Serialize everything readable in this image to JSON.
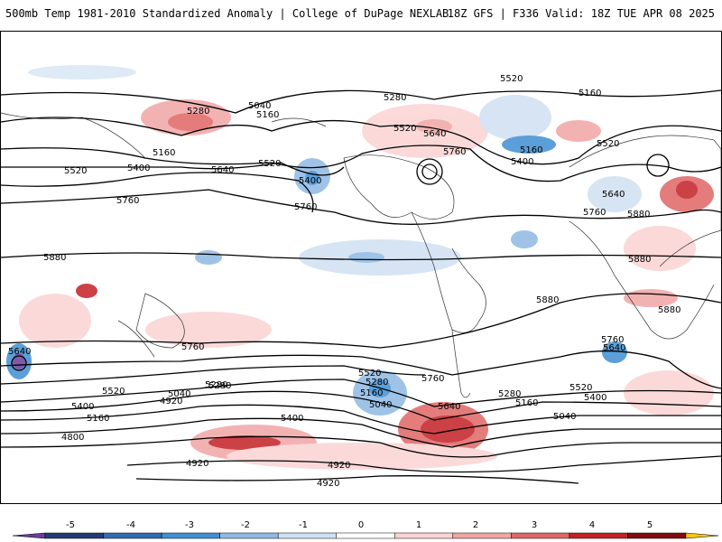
{
  "header": {
    "title_left": "500mb Temp 1981-2010 Standardized Anomaly | College of DuPage NEXLAB",
    "title_right": "18Z GFS | F336 Valid: 18Z TUE APR 08 2025"
  },
  "contour_labels": [
    "5160",
    "5040",
    "5280",
    "5160",
    "5520",
    "5400",
    "5640",
    "5760",
    "5520",
    "5400",
    "5040",
    "5160",
    "5280",
    "5520",
    "5640",
    "5760",
    "5400",
    "5520",
    "5760",
    "5880",
    "5160",
    "5640",
    "5760",
    "5880",
    "5880",
    "5520",
    "5160",
    "5400",
    "5640",
    "5880",
    "5760",
    "5640",
    "5880",
    "5640",
    "5760",
    "5520",
    "5400",
    "5280",
    "5160",
    "5400",
    "4920",
    "5040",
    "5280",
    "5160",
    "5520",
    "5760",
    "5040",
    "5280",
    "5640",
    "5400",
    "4800",
    "4920",
    "4920",
    "4920",
    "5160",
    "5280",
    "5400",
    "5520",
    "5040"
  ],
  "colorbar": {
    "ticks": [
      "-5",
      "-4",
      "-3",
      "-2",
      "-1",
      "0",
      "1",
      "2",
      "3",
      "4",
      "5"
    ],
    "colors": [
      "#6a3d9a",
      "#233b75",
      "#2f6db3",
      "#3f8fd2",
      "#8fb9e3",
      "#cfe0f3",
      "#ffffff",
      "#fbd3d3",
      "#f2a5a5",
      "#e06666",
      "#c42026",
      "#7f0d12",
      "#f5c518"
    ]
  }
}
